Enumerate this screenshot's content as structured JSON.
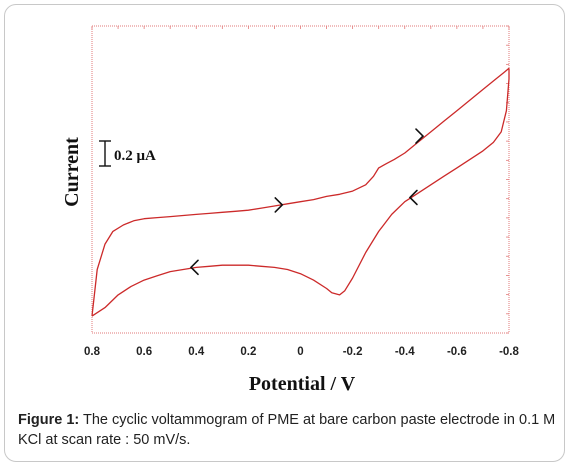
{
  "chart_data": {
    "type": "line",
    "title": "",
    "xlabel": "Potential / V",
    "ylabel": "Current",
    "x_ticks": [
      "0.8",
      "0.6",
      "0.4",
      "0.2",
      "0",
      "-0.2",
      "-0.4",
      "-0.6",
      "-0.8"
    ],
    "xlim": [
      0.8,
      -0.8
    ],
    "ylim": [
      0,
      1.45
    ],
    "y_units": "μA (relative)",
    "scale_bar": {
      "label": "0.2 μA",
      "value": 0.2
    },
    "grid": false,
    "legend": "none",
    "line_color": "#cc2a2a",
    "series": [
      {
        "name": "",
        "x": [
          0.8,
          0.78,
          0.75,
          0.72,
          0.68,
          0.64,
          0.6,
          0.55,
          0.5,
          0.45,
          0.4,
          0.35,
          0.3,
          0.25,
          0.2,
          0.15,
          0.1,
          0.05,
          0.0,
          -0.05,
          -0.1,
          -0.15,
          -0.2,
          -0.25,
          -0.28,
          -0.3,
          -0.33,
          -0.36,
          -0.4,
          -0.45,
          -0.5,
          -0.55,
          -0.6,
          -0.65,
          -0.7,
          -0.75,
          -0.78,
          -0.8
        ],
        "y": [
          0.08,
          0.3,
          0.42,
          0.48,
          0.51,
          0.53,
          0.54,
          0.545,
          0.55,
          0.555,
          0.56,
          0.565,
          0.57,
          0.575,
          0.58,
          0.59,
          0.6,
          0.61,
          0.62,
          0.63,
          0.645,
          0.655,
          0.67,
          0.7,
          0.74,
          0.78,
          0.8,
          0.82,
          0.85,
          0.9,
          0.95,
          1.0,
          1.05,
          1.1,
          1.15,
          1.2,
          1.23,
          1.25
        ]
      },
      {
        "name": "",
        "x": [
          -0.8,
          -0.8,
          -0.79,
          -0.77,
          -0.74,
          -0.7,
          -0.65,
          -0.6,
          -0.55,
          -0.5,
          -0.45,
          -0.4,
          -0.35,
          -0.3,
          -0.25,
          -0.2,
          -0.17,
          -0.15,
          -0.12,
          -0.1,
          -0.05,
          0.0,
          0.05,
          0.1,
          0.15,
          0.2,
          0.25,
          0.3,
          0.35,
          0.4,
          0.45,
          0.5,
          0.55,
          0.6,
          0.65,
          0.7,
          0.75,
          0.8
        ],
        "y": [
          1.25,
          1.2,
          1.05,
          0.95,
          0.9,
          0.86,
          0.82,
          0.78,
          0.74,
          0.7,
          0.66,
          0.62,
          0.56,
          0.48,
          0.38,
          0.26,
          0.2,
          0.18,
          0.19,
          0.21,
          0.25,
          0.28,
          0.3,
          0.31,
          0.315,
          0.32,
          0.32,
          0.32,
          0.315,
          0.31,
          0.3,
          0.29,
          0.27,
          0.25,
          0.22,
          0.18,
          0.12,
          0.08
        ]
      }
    ],
    "arrow_marks": [
      {
        "x": 0.07,
        "y": 0.605,
        "dir": "right"
      },
      {
        "x": -0.47,
        "y": 0.93,
        "dir": "right"
      },
      {
        "x": -0.42,
        "y": 0.64,
        "dir": "left"
      },
      {
        "x": 0.42,
        "y": 0.31,
        "dir": "left"
      }
    ]
  },
  "caption": {
    "label": "Figure 1:",
    "text": " The cyclic voltammogram of PME at bare carbon paste electrode in 0.1 M KCl at scan rate : 50 mV/s."
  }
}
